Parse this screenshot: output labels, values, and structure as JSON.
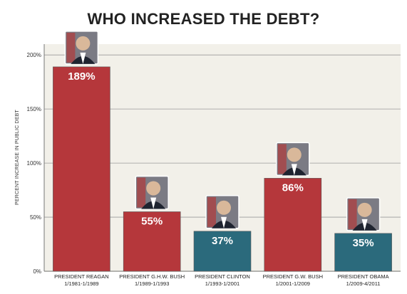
{
  "colors": {
    "red": "#b5373b",
    "teal": "#2b6a7c",
    "plot_bg": "#f2f0e9",
    "grid": "#9a9a9a"
  },
  "chart_data": {
    "type": "bar",
    "title": "WHO INCREASED THE DEBT?",
    "xlabel": "",
    "ylabel": "PERCENT INCREASE IN PUBLIC DEBT",
    "ylim": [
      0,
      210
    ],
    "yticks": [
      0,
      50,
      100,
      150,
      200
    ],
    "ytick_labels": [
      "0%",
      "50%",
      "100%",
      "150%",
      "200%"
    ],
    "grid": true,
    "categories": [
      {
        "name": "PRESIDENT REAGAN",
        "term": "1/1981-1/1989"
      },
      {
        "name": "PRESIDENT G.H.W. BUSH",
        "term": "1/1989-1/1993"
      },
      {
        "name": "PRESIDENT CLINTON",
        "term": "1/1993-1/2001"
      },
      {
        "name": "PRESIDENT G.W. BUSH",
        "term": "1/2001-1/2009"
      },
      {
        "name": "PRESIDENT OBAMA",
        "term": "1/2009-4/2011"
      }
    ],
    "values": [
      189,
      55,
      37,
      86,
      35
    ],
    "value_labels": [
      "189%",
      "55%",
      "37%",
      "86%",
      "35%"
    ],
    "bar_colors": [
      "red",
      "red",
      "teal",
      "red",
      "teal"
    ],
    "photos": [
      "portrait-photo",
      "portrait-photo",
      "portrait-photo",
      "portrait-photo",
      "portrait-photo"
    ]
  }
}
